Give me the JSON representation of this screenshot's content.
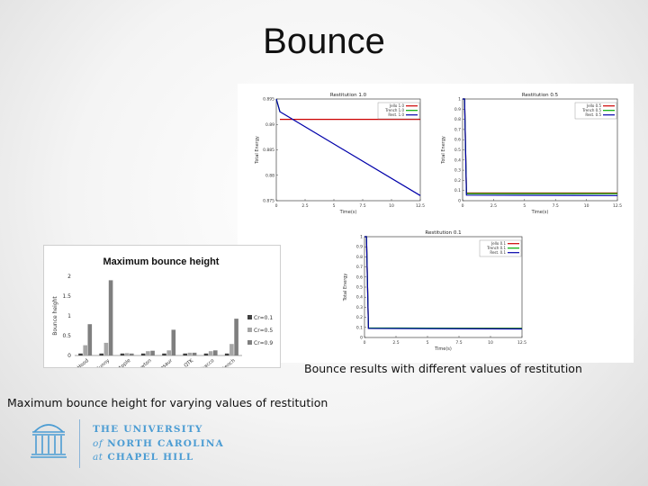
{
  "slide": {
    "title": "Bounce",
    "bounce_caption": "Bounce results with different values of restitution",
    "bar_caption": "Maximum bounce height for varying values of restitution",
    "logo": {
      "line1": "THE UNIVERSITY",
      "line2_italic": "of",
      "line2": "NORTH CAROLINA",
      "line3_italic": "at",
      "line3": "CHAPEL HILL",
      "color": "#4b9cd3"
    }
  },
  "chart_data": [
    {
      "type": "line",
      "title": "Restitution 1.0",
      "xlabel": "Time(s)",
      "ylabel": "Total Energy",
      "ylim": [
        0.875,
        0.895
      ],
      "xlim": [
        0,
        12
      ],
      "yticks": [
        "0.875",
        "0.88",
        "0.885",
        "0.89",
        "0.895"
      ],
      "xticks": [
        "0",
        "2.5",
        "5",
        "7.5",
        "10",
        "12.5"
      ],
      "legend": {
        "position": "top-right",
        "entries": [
          "Jello 1.0",
          "Trench 1.0",
          "Rest. 1.0"
        ]
      },
      "series": [
        {
          "name": "Jello 1.0",
          "color": "#cc0000",
          "x": [
            0.3,
            12
          ],
          "y": [
            0.891,
            0.891
          ]
        },
        {
          "name": "Trench 1.0",
          "color": "#00aa00",
          "x": [
            0,
            0.3
          ],
          "y": [
            0.895,
            0.8925
          ]
        },
        {
          "name": "Rest. 1.0",
          "color": "#0000aa",
          "x": [
            0,
            0.3,
            12
          ],
          "y": [
            0.895,
            0.8925,
            0.876
          ]
        }
      ]
    },
    {
      "type": "line",
      "title": "Restitution 0.5",
      "xlabel": "Time(s)",
      "ylabel": "Total Energy",
      "ylim": [
        0,
        1
      ],
      "xlim": [
        0,
        12
      ],
      "yticks": [
        "0",
        "0.1",
        "0.2",
        "0.3",
        "0.4",
        "0.5",
        "0.6",
        "0.7",
        "0.8",
        "0.9",
        "1"
      ],
      "xticks": [
        "0",
        "2.5",
        "5",
        "7.5",
        "10",
        "12.5"
      ],
      "legend": {
        "position": "top-right",
        "entries": [
          "Jello 0.5",
          "Trench 0.5",
          "Rest. 0.5"
        ]
      },
      "series": [
        {
          "name": "Jello 0.5",
          "color": "#cc0000",
          "x": [
            0,
            0.15,
            0.3,
            12
          ],
          "y": [
            1.0,
            1.0,
            0.075,
            0.075
          ]
        },
        {
          "name": "Trench 0.5",
          "color": "#00aa00",
          "x": [
            0,
            0.15,
            0.3,
            12
          ],
          "y": [
            1.0,
            1.0,
            0.07,
            0.07
          ]
        },
        {
          "name": "Rest. 0.5",
          "color": "#0000aa",
          "x": [
            0,
            0.15,
            0.3,
            12
          ],
          "y": [
            1.0,
            1.0,
            0.055,
            0.05
          ]
        }
      ]
    },
    {
      "type": "line",
      "title": "Restitution 0.1",
      "xlabel": "Time(s)",
      "ylabel": "Total Energy",
      "ylim": [
        0,
        1
      ],
      "xlim": [
        0,
        12
      ],
      "yticks": [
        "0",
        "0.1",
        "0.2",
        "0.3",
        "0.4",
        "0.5",
        "0.6",
        "0.7",
        "0.8",
        "0.9",
        "1"
      ],
      "xticks": [
        "0",
        "2.5",
        "5",
        "7.5",
        "10",
        "12.5"
      ],
      "legend": {
        "position": "top-right",
        "entries": [
          "Jello 0.1",
          "Trench 0.1",
          "Rest. 0.1"
        ]
      },
      "series": [
        {
          "name": "Jello 0.1",
          "color": "#cc0000",
          "x": [
            0,
            0.15,
            0.3,
            12
          ],
          "y": [
            1.0,
            1.0,
            0.09,
            0.09
          ]
        },
        {
          "name": "Trench 0.1",
          "color": "#00aa00",
          "x": [
            0,
            0.15,
            0.3,
            12
          ],
          "y": [
            1.0,
            1.0,
            0.095,
            0.09
          ]
        },
        {
          "name": "Rest. 0.1",
          "color": "#0000aa",
          "x": [
            0,
            0.15,
            0.3,
            12
          ],
          "y": [
            1.0,
            1.0,
            0.09,
            0.085
          ]
        }
      ]
    },
    {
      "type": "bar",
      "title": "Maximum bounce height",
      "ylabel": "Bounce height",
      "ylim": [
        0,
        2
      ],
      "yticks": [
        "0",
        "0.5",
        "1",
        "1.5",
        "2"
      ],
      "categories": [
        "Hood",
        "Bunny",
        "Apple",
        "Newton",
        "Dinosaur",
        "QTK",
        "Tobacco",
        "Trench"
      ],
      "legend": {
        "position": "right"
      },
      "series": [
        {
          "name": "Cr=0.1",
          "color": "#404040",
          "values": [
            0.05,
            0.05,
            0.05,
            0.05,
            0.05,
            0.05,
            0.05,
            0.05
          ]
        },
        {
          "name": "Cr=0.5",
          "color": "#a6a6a6",
          "values": [
            0.26,
            0.32,
            0.06,
            0.11,
            0.13,
            0.07,
            0.11,
            0.29
          ]
        },
        {
          "name": "Cr=0.9",
          "color": "#7f7f7f",
          "values": [
            0.79,
            1.9,
            0.05,
            0.12,
            0.65,
            0.07,
            0.13,
            0.93
          ]
        }
      ]
    }
  ]
}
